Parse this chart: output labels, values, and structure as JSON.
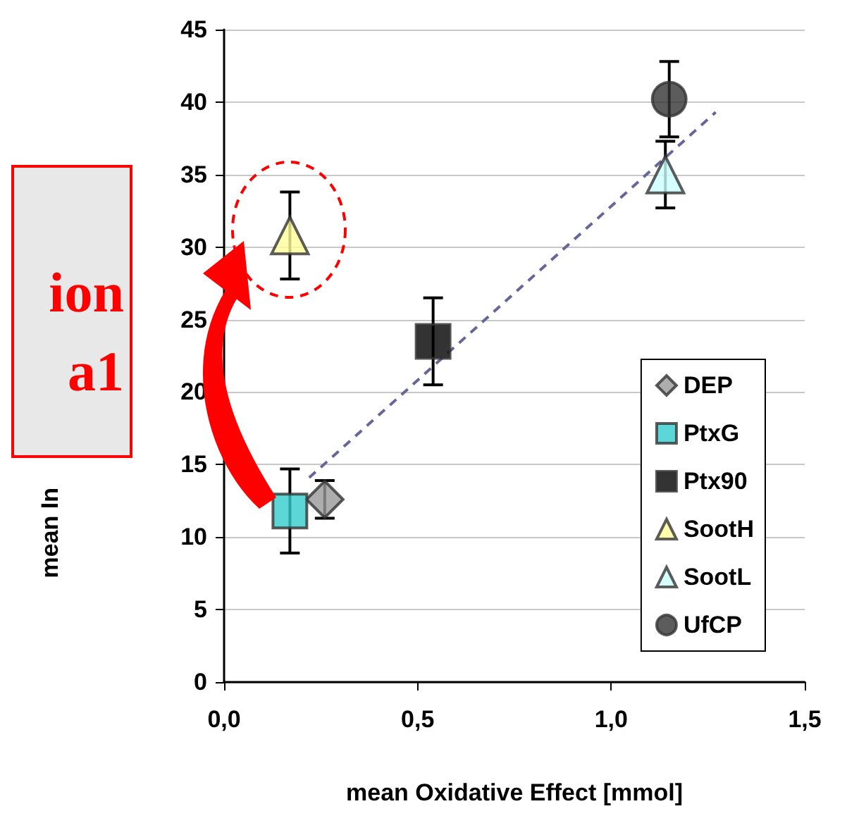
{
  "chart_data": {
    "type": "scatter",
    "xlabel": "mean Oxidative Effect [mmol]",
    "ylabel": "mean In",
    "annotations": [
      "ion",
      "a1"
    ],
    "xlim": [
      0,
      1.5
    ],
    "xticks": [
      {
        "value": 0,
        "label": "0,0"
      },
      {
        "value": 0.5,
        "label": "0,5"
      },
      {
        "value": 1,
        "label": "1,0"
      },
      {
        "value": 1.5,
        "label": "1,5"
      }
    ],
    "ylim": [
      0,
      45
    ],
    "yticks": [
      0,
      5,
      10,
      15,
      20,
      25,
      30,
      35,
      40,
      45
    ],
    "grid": "y",
    "legend": "bottom right",
    "series": [
      {
        "name": "DEP",
        "color": "#999999",
        "marker": "diamond",
        "x": [
          0.26
        ],
        "values": [
          12.6
        ],
        "errors": [
          1.3
        ]
      },
      {
        "name": "PtxG",
        "color": "#33cccc",
        "marker": "square",
        "x": [
          0.17
        ],
        "values": [
          11.8
        ],
        "errors": [
          2.9
        ]
      },
      {
        "name": "Ptx90",
        "color": "#000000",
        "marker": "square",
        "x": [
          0.54
        ],
        "values": [
          23.5
        ],
        "errors": [
          3.0
        ]
      },
      {
        "name": "SootH",
        "color": "#ffff99",
        "marker": "triangle",
        "x": [
          0.17
        ],
        "values": [
          30.8
        ],
        "errors": [
          3.0
        ]
      },
      {
        "name": "SootL",
        "color": "#ccffff",
        "marker": "triangle",
        "x": [
          1.14
        ],
        "values": [
          35.0
        ],
        "errors": [
          2.3
        ]
      },
      {
        "name": "UfCP",
        "color": "#333333",
        "marker": "circle",
        "x": [
          1.15
        ],
        "values": [
          40.2
        ],
        "errors": [
          2.6
        ]
      },
      {
        "type": "line",
        "color": "#666699",
        "marker": "none",
        "line_style": "dashed",
        "x": [
          0.22,
          1.27
        ],
        "values": [
          14.1,
          39.3
        ]
      }
    ]
  }
}
